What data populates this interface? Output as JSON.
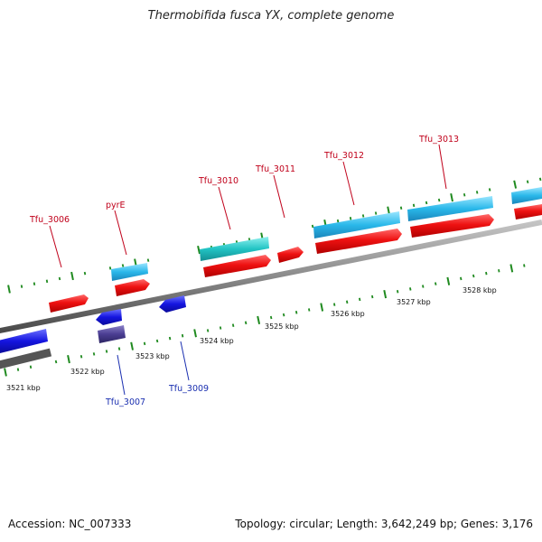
{
  "title": "Thermobifida fusca YX, complete genome",
  "footer": {
    "accession": "Accession: NC_007333",
    "topology": "Topology: circular; Length: 3,642,249 bp; Genes: 3,176"
  },
  "kbp_ticks": [
    "3521 kbp",
    "3522 kbp",
    "3523 kbp",
    "3524 kbp",
    "3525 kbp",
    "3526 kbp",
    "3527 kbp",
    "3528 kbp"
  ],
  "gene_labels": {
    "tfu_3006": "Tfu_3006",
    "pyre": "pyrE",
    "tfu_3010": "Tfu_3010",
    "tfu_3011": "Tfu_3011",
    "tfu_3012": "Tfu_3012",
    "tfu_3013": "Tfu_3013",
    "tfu_3007": "Tfu_3007",
    "tfu_3009": "Tfu_3009"
  },
  "colors": {
    "forward_label": "#c0001a",
    "reverse_label": "#1a2fb0",
    "forward_cds": "#ee1111",
    "reverse_cds": "#1515e0",
    "forward_gene": "#2ab8ea",
    "rna_gene": "#22c4c4",
    "reverse_gene": "#4a3d92",
    "backbone": "#8a8a8a",
    "tick": "#1f8a1f"
  }
}
